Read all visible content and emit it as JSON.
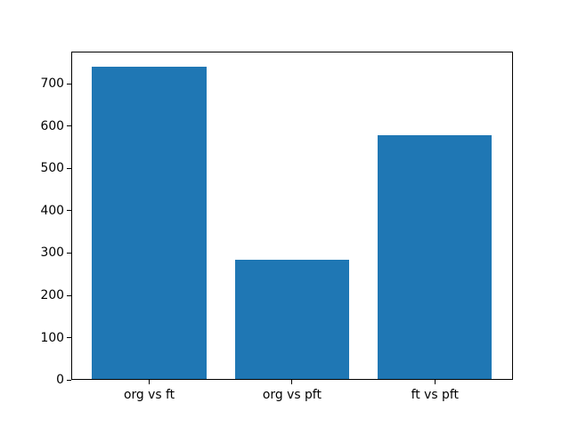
{
  "figure": {
    "background": "#ffffff"
  },
  "chart_data": {
    "type": "bar",
    "categories": [
      "org vs ft",
      "org vs pft",
      "ft vs pft"
    ],
    "values": [
      740,
      284,
      579
    ],
    "title": "",
    "xlabel": "",
    "ylabel": "",
    "ylim": [
      0,
      777
    ],
    "xlim": [
      -0.546,
      2.547
    ],
    "yticks": [
      0,
      100,
      200,
      300,
      400,
      500,
      600,
      700
    ],
    "ytick_labels": [
      "0",
      "100",
      "200",
      "300",
      "400",
      "500",
      "600",
      "700"
    ],
    "bar_width": 0.8,
    "bar_color": "#1f77b4",
    "axis_color": "#000000",
    "text_color": "#000000",
    "grid": false,
    "legend_position": "none"
  }
}
